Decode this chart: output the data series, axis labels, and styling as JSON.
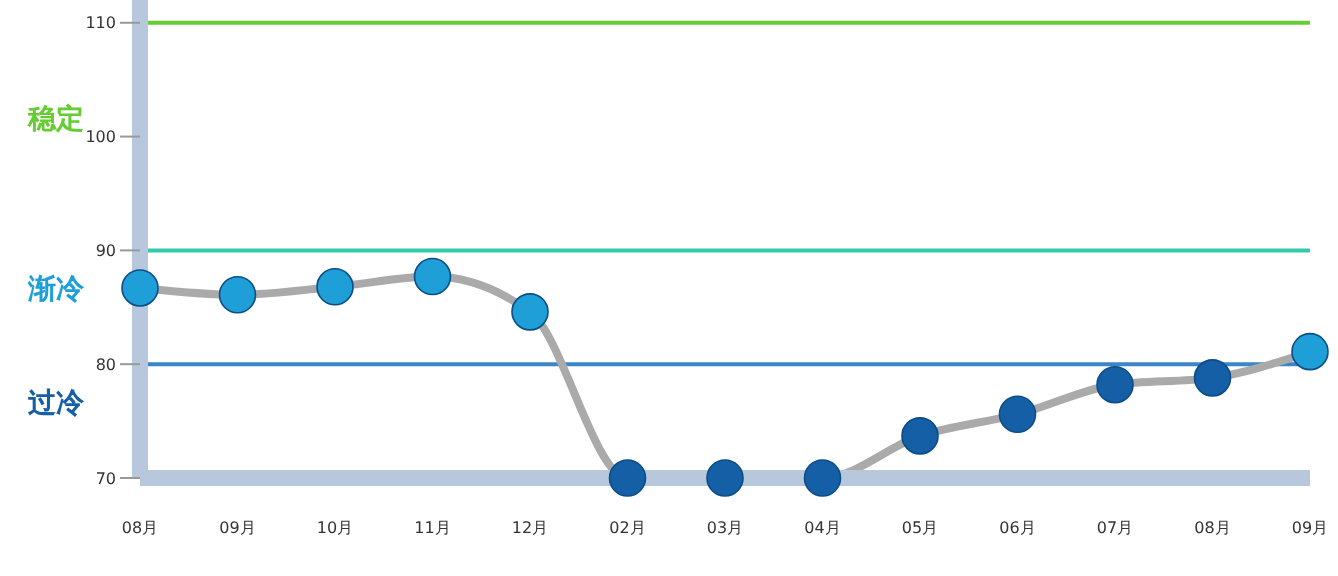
{
  "chart_data": {
    "type": "line",
    "categories": [
      "08月",
      "09月",
      "10月",
      "11月",
      "12月",
      "02月",
      "03月",
      "04月",
      "05月",
      "06月",
      "07月",
      "08月",
      "09月"
    ],
    "series": [
      {
        "color": "#aaaaaa",
        "colors": [
          "#1e9fd8",
          "#1e9fd8",
          "#1e9fd8",
          "#1e9fd8",
          "#1e9fd8",
          "#155fa6",
          "#155fa6",
          "#155fa6",
          "#155fa6",
          "#155fa6",
          "#155fa6",
          "#155fa6",
          "#1e9fd8"
        ],
        "values": [
          86.7,
          86.1,
          86.8,
          87.7,
          84.6,
          70,
          70,
          70,
          73.7,
          75.6,
          78.2,
          78.8,
          81.1
        ]
      }
    ],
    "ylim": [
      70,
      112
    ],
    "yticks": [
      70,
      80,
      90,
      100,
      110
    ],
    "marker": "circle",
    "grid": false,
    "legend": false,
    "ref_lines": [
      {
        "axis": "y",
        "value": 110,
        "color": "#66cc33"
      },
      {
        "axis": "y",
        "value": 90,
        "color": "#33ccaa"
      },
      {
        "axis": "y",
        "value": 80,
        "color": "#3a86c8"
      }
    ],
    "annotations": [
      "稳定",
      "渐冷",
      "过冷"
    ]
  }
}
